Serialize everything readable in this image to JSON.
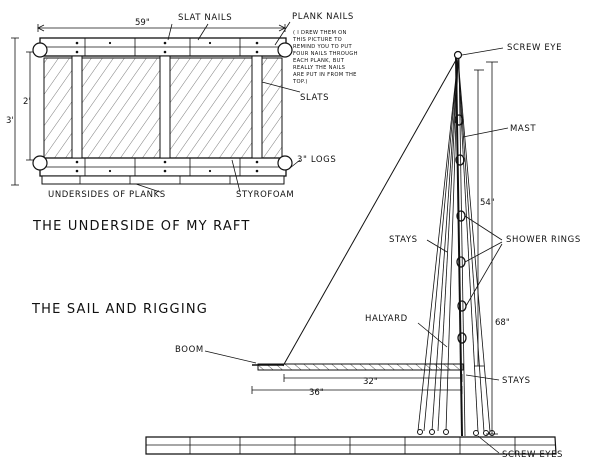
{
  "raft": {
    "width_dim": "59\"",
    "height_dim_outer": "3'",
    "height_dim_inner": "2'",
    "slat_nails": "SLAT NAILS",
    "plank_nails": "PLANK NAILS",
    "plank_note_lines": [
      "( I DREW THEM ON",
      "THIS PICTURE TO",
      "REMIND YOU TO PUT",
      "FOUR NAILS THROUGH",
      "EACH PLANK, BUT",
      "REALLY THE NAILS",
      "ARE PUT IN FROM THE",
      "TOP.)"
    ],
    "slats": "SLATS",
    "logs": "3\" LOGS",
    "undersides": "UNDERSIDES OF PLANKS",
    "styrofoam": "STYROFOAM",
    "title": "THE UNDERSIDE OF MY RAFT"
  },
  "sail": {
    "title": "THE SAIL AND RIGGING",
    "screw_eye": "SCREW EYE",
    "mast": "MAST",
    "stays_left": "STAYS",
    "shower_rings": "SHOWER RINGS",
    "halyard": "HALYARD",
    "boom": "BOOM",
    "stays_right": "STAYS",
    "screw_eyes": "SCREW EYES",
    "dim_54": "54\"",
    "dim_68": "68\"",
    "dim_32": "32\"",
    "dim_36": "36\""
  }
}
